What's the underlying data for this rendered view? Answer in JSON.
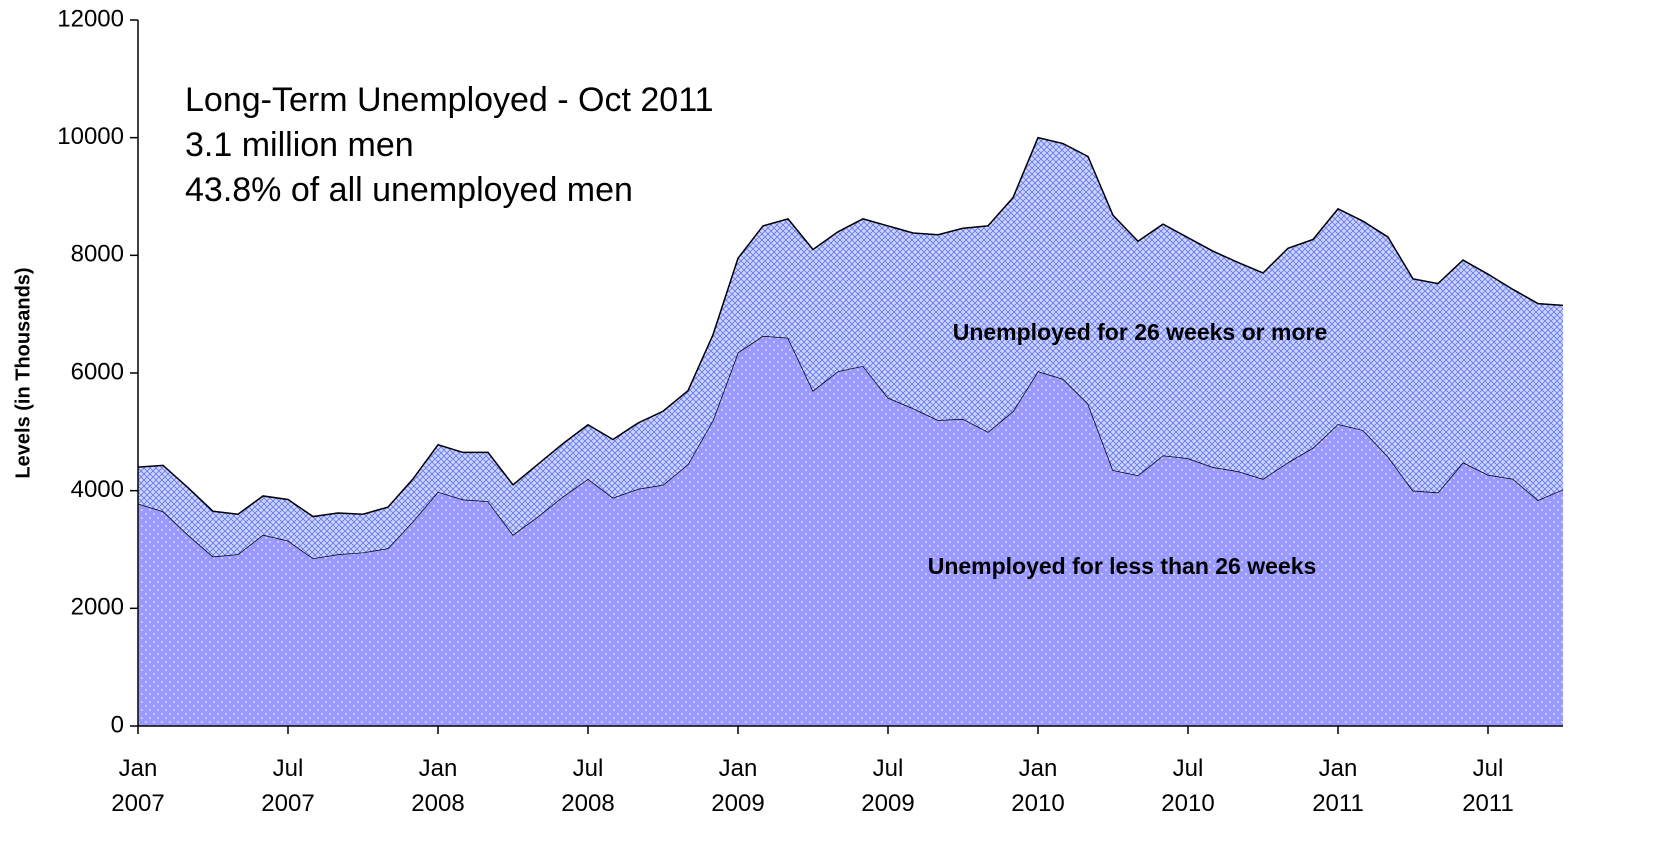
{
  "chart_data": {
    "type": "stacked-area",
    "annotations": [
      "Long-Term Unemployed - Oct 2011",
      "3.1 million men",
      "43.8% of all unemployed men"
    ],
    "ylabel": "Levels (in Thousands)",
    "categories": [
      "Jan 2007",
      null,
      null,
      null,
      null,
      null,
      "Jul 2007",
      null,
      null,
      null,
      null,
      null,
      "Jan 2008",
      null,
      null,
      null,
      null,
      null,
      "Jul 2008",
      null,
      null,
      null,
      null,
      null,
      "Jan 2009",
      null,
      null,
      null,
      null,
      null,
      "Jul 2009",
      null,
      null,
      null,
      null,
      null,
      "Jan 2010",
      null,
      null,
      null,
      null,
      null,
      "Jul 2010",
      null,
      null,
      null,
      null,
      null,
      "Jan 2011",
      null,
      null,
      null,
      null,
      null,
      "Jul 2011",
      null,
      null,
      null
    ],
    "series": [
      {
        "name": "Unemployed for less than 26 weeks",
        "color": "#9999ff",
        "values": [
          3780,
          3650,
          3250,
          2880,
          2920,
          3250,
          3150,
          2850,
          2920,
          2950,
          3020,
          3480,
          3980,
          3850,
          3820,
          3250,
          3560,
          3900,
          4200,
          3880,
          4030,
          4100,
          4450,
          5200,
          6350,
          6630,
          6600,
          5700,
          6030,
          6120,
          5580,
          5400,
          5200,
          5220,
          5000,
          5350,
          6030,
          5900,
          5480,
          4350,
          4260,
          4600,
          4550,
          4400,
          4330,
          4200,
          4480,
          4730,
          5130,
          5030,
          4580,
          4000,
          3970,
          4480,
          4270,
          4200,
          3840,
          4020
        ]
      },
      {
        "name": "Unemployed for 26 weeks or more",
        "color": "#ccd4ff",
        "values": [
          620,
          780,
          800,
          770,
          680,
          660,
          700,
          710,
          700,
          650,
          700,
          720,
          800,
          800,
          830,
          850,
          890,
          900,
          920,
          990,
          1120,
          1250,
          1250,
          1450,
          1600,
          1870,
          2020,
          2400,
          2370,
          2500,
          2920,
          2980,
          3150,
          3240,
          3500,
          3630,
          3970,
          4000,
          4200,
          4330,
          3980,
          3930,
          3750,
          3670,
          3550,
          3500,
          3640,
          3540,
          3660,
          3550,
          3730,
          3600,
          3550,
          3440,
          3410,
          3220,
          3340,
          3130
        ]
      }
    ],
    "ylim": [
      0,
      12000
    ],
    "yticks": [
      0,
      2000,
      4000,
      6000,
      8000,
      10000,
      12000
    ]
  }
}
